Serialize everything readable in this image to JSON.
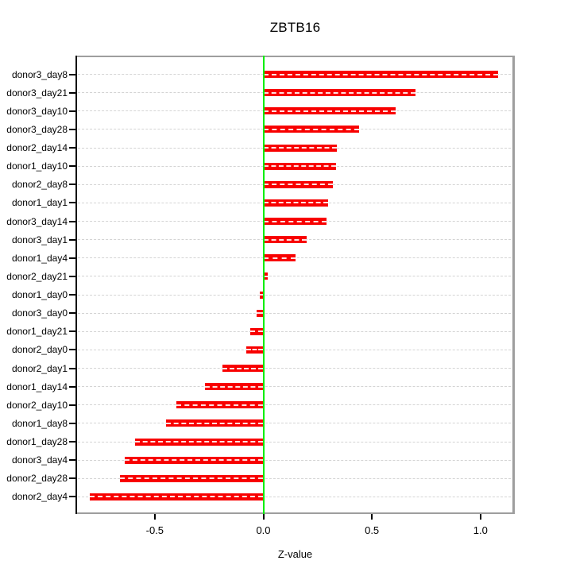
{
  "chart_data": {
    "type": "bar",
    "orientation": "horizontal",
    "title": "ZBTB16",
    "xlabel": "Z-value",
    "ylabel": "",
    "categories": [
      "donor3_day8",
      "donor3_day21",
      "donor3_day10",
      "donor3_day28",
      "donor2_day14",
      "donor1_day10",
      "donor2_day8",
      "donor1_day1",
      "donor3_day14",
      "donor3_day1",
      "donor1_day4",
      "donor2_day21",
      "donor1_day0",
      "donor3_day0",
      "donor1_day21",
      "donor2_day0",
      "donor2_day1",
      "donor1_day14",
      "donor2_day10",
      "donor1_day8",
      "donor1_day28",
      "donor3_day4",
      "donor2_day28",
      "donor2_day4"
    ],
    "values": [
      1.08,
      0.7,
      0.61,
      0.44,
      0.34,
      0.335,
      0.32,
      0.3,
      0.29,
      0.2,
      0.15,
      0.02,
      -0.015,
      -0.03,
      -0.06,
      -0.08,
      -0.19,
      -0.27,
      -0.4,
      -0.45,
      -0.59,
      -0.64,
      -0.66,
      -0.8
    ],
    "xlim": [
      -0.865,
      1.158
    ],
    "x_ticks": {
      "values": [
        -0.5,
        0.0,
        0.5,
        1.0
      ],
      "labels": [
        "-0.5",
        "0.0",
        "0.5",
        "1.0"
      ]
    },
    "grid": "horizontal-dashed-per-row",
    "legend": null,
    "colors": {
      "bar": "#f80000",
      "bar_center_dash": "#ffe0e0",
      "zero_line": "#00ee00",
      "gridline": "#d4d4d4",
      "box_border": "#9e9e9e",
      "axis_line": "#111111",
      "text": "#000000",
      "background": "#ffffff"
    }
  }
}
